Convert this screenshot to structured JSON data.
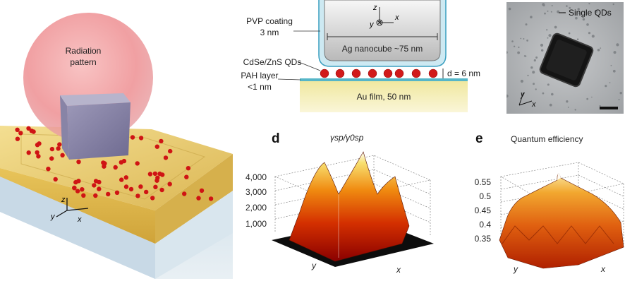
{
  "panel_a": {
    "bubble_label_line1": "Radiation",
    "bubble_label_line2": "pattern",
    "axis_z": "z",
    "axis_y": "y",
    "axis_x": "x",
    "colors": {
      "gold": "#e6c04a",
      "glass": "#bcd4e4",
      "qd": "#d41414",
      "bubble": "#f08a8a"
    }
  },
  "panel_b": {
    "pvp_line1": "PVP coating",
    "pvp_line2": "3 nm",
    "nanocube_label": "Ag nanocube ~75 nm",
    "qd_label": "CdSe/ZnS QDs",
    "pah_line1": "PAH layer",
    "pah_line2": "<1 nm",
    "gap_label": "d = 6 nm",
    "film_label": "Au film, 50 nm",
    "axis_z": "z",
    "axis_x": "x",
    "axis_y": "y"
  },
  "panel_c": {
    "legend": "Single QDs",
    "axis_y": "y",
    "axis_x": "x"
  },
  "panel_d": {
    "letter": "d",
    "title": "γsp/γ0sp",
    "z_ticks": [
      "4,000",
      "3,000",
      "2,000",
      "1,000"
    ],
    "axis_y": "y",
    "axis_x": "x"
  },
  "panel_e": {
    "letter": "e",
    "title": "Quantum efficiency",
    "z_ticks": [
      "0.55",
      "0.5",
      "0.45",
      "0.4",
      "0.35"
    ],
    "axis_y": "y",
    "axis_x": "x"
  }
}
